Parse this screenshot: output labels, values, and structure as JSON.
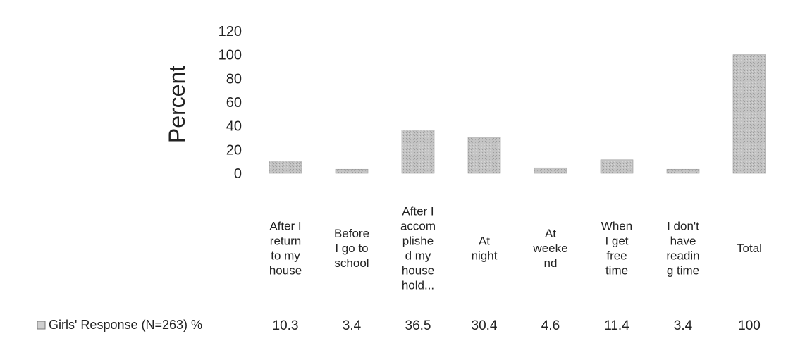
{
  "chart_data": {
    "type": "bar",
    "ylabel": "Percent",
    "ylim": [
      0,
      120
    ],
    "yticks": [
      0,
      20,
      40,
      60,
      80,
      100,
      120
    ],
    "categories": [
      [
        "After I",
        "return",
        "to my",
        "house"
      ],
      [
        "Before",
        "I go to",
        "school"
      ],
      [
        "After I",
        "accom",
        "plishe",
        "d my",
        "house",
        "hold..."
      ],
      [
        "At",
        "night"
      ],
      [
        "At",
        "weeke",
        "nd"
      ],
      [
        "When",
        "I get",
        "free",
        "time"
      ],
      [
        "I don't",
        "have",
        "readin",
        "g time"
      ],
      [
        "Total"
      ]
    ],
    "series": [
      {
        "name": "Girls' Response (N=263) %",
        "values": [
          10.3,
          3.4,
          36.5,
          30.4,
          4.6,
          11.4,
          3.4,
          100
        ],
        "value_labels": [
          "10.3",
          "3.4",
          "36.5",
          "30.4",
          "4.6",
          "11.4",
          "3.4",
          "100"
        ]
      }
    ],
    "bar_color": "#b8b8b8",
    "legend_position": "bottom-left (data table)",
    "grid": false
  }
}
